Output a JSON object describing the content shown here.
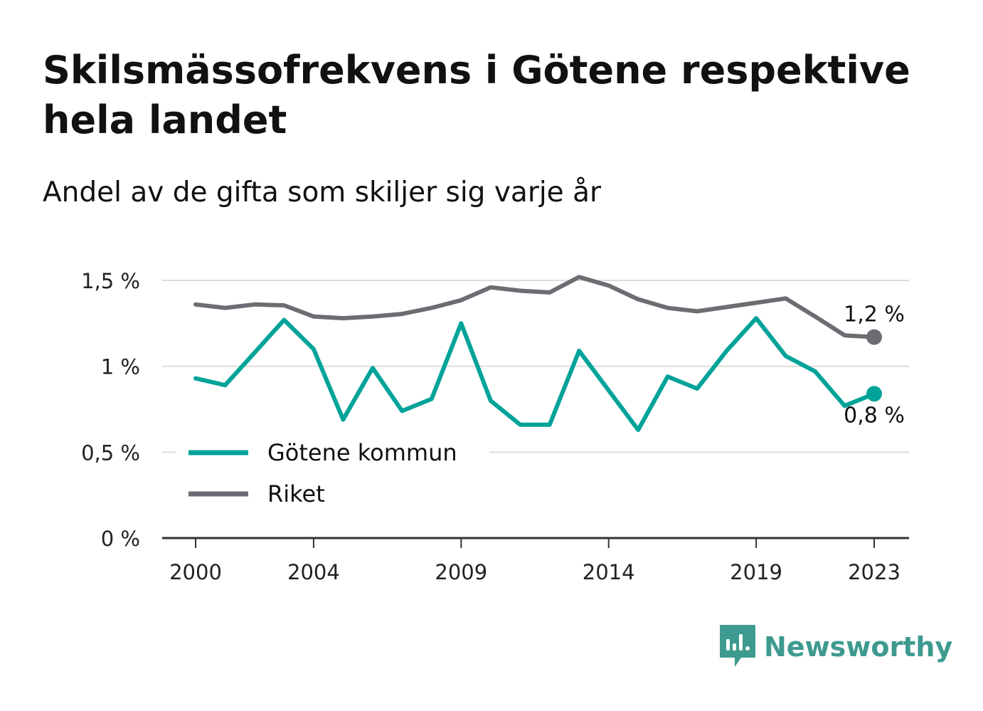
{
  "title": "Skilsmässofrekvens i Götene respektive hela landet",
  "subtitle": "Andel av de gifta som skiljer sig varje år",
  "brand": {
    "name": "Newsworthy",
    "icon": "newsworthy-logo-icon",
    "color": "#3e9a8f"
  },
  "chart_data": {
    "type": "line",
    "title": "Skilsmässofrekvens i Götene respektive hela landet",
    "subtitle": "Andel av de gifta som skiljer sig varje år",
    "x": [
      2000,
      2001,
      2002,
      2003,
      2004,
      2005,
      2006,
      2007,
      2008,
      2009,
      2010,
      2011,
      2012,
      2013,
      2014,
      2015,
      2016,
      2017,
      2018,
      2019,
      2020,
      2021,
      2022,
      2023
    ],
    "xticks": [
      2000,
      2004,
      2009,
      2014,
      2019,
      2023
    ],
    "xtick_labels": [
      "2000",
      "2004",
      "2009",
      "2014",
      "2019",
      "2023"
    ],
    "yticks": [
      0,
      0.5,
      1,
      1.5
    ],
    "ytick_labels": [
      "0 %",
      "0,5 %",
      "1 %",
      "1,5 %"
    ],
    "ylim": [
      0,
      1.5
    ],
    "grid": true,
    "legend_position": "bottom-left",
    "series": [
      {
        "name": "Götene kommun",
        "color": "#00a399",
        "values": [
          0.93,
          0.89,
          1.08,
          1.27,
          1.1,
          0.69,
          0.99,
          0.74,
          0.81,
          1.25,
          0.8,
          0.66,
          0.66,
          1.09,
          0.86,
          0.63,
          0.94,
          0.87,
          1.09,
          1.28,
          1.06,
          0.97,
          0.77,
          0.84
        ],
        "end_label": "0,8 %",
        "end_label_position": "below"
      },
      {
        "name": "Riket",
        "color": "#6c6c72",
        "values": [
          1.36,
          1.34,
          1.36,
          1.355,
          1.29,
          1.28,
          1.29,
          1.305,
          1.34,
          1.385,
          1.46,
          1.44,
          1.43,
          1.52,
          1.47,
          1.39,
          1.34,
          1.32,
          1.345,
          1.37,
          1.395,
          1.29,
          1.18,
          1.17
        ],
        "end_label": "1,2 %",
        "end_label_position": "above"
      }
    ]
  }
}
